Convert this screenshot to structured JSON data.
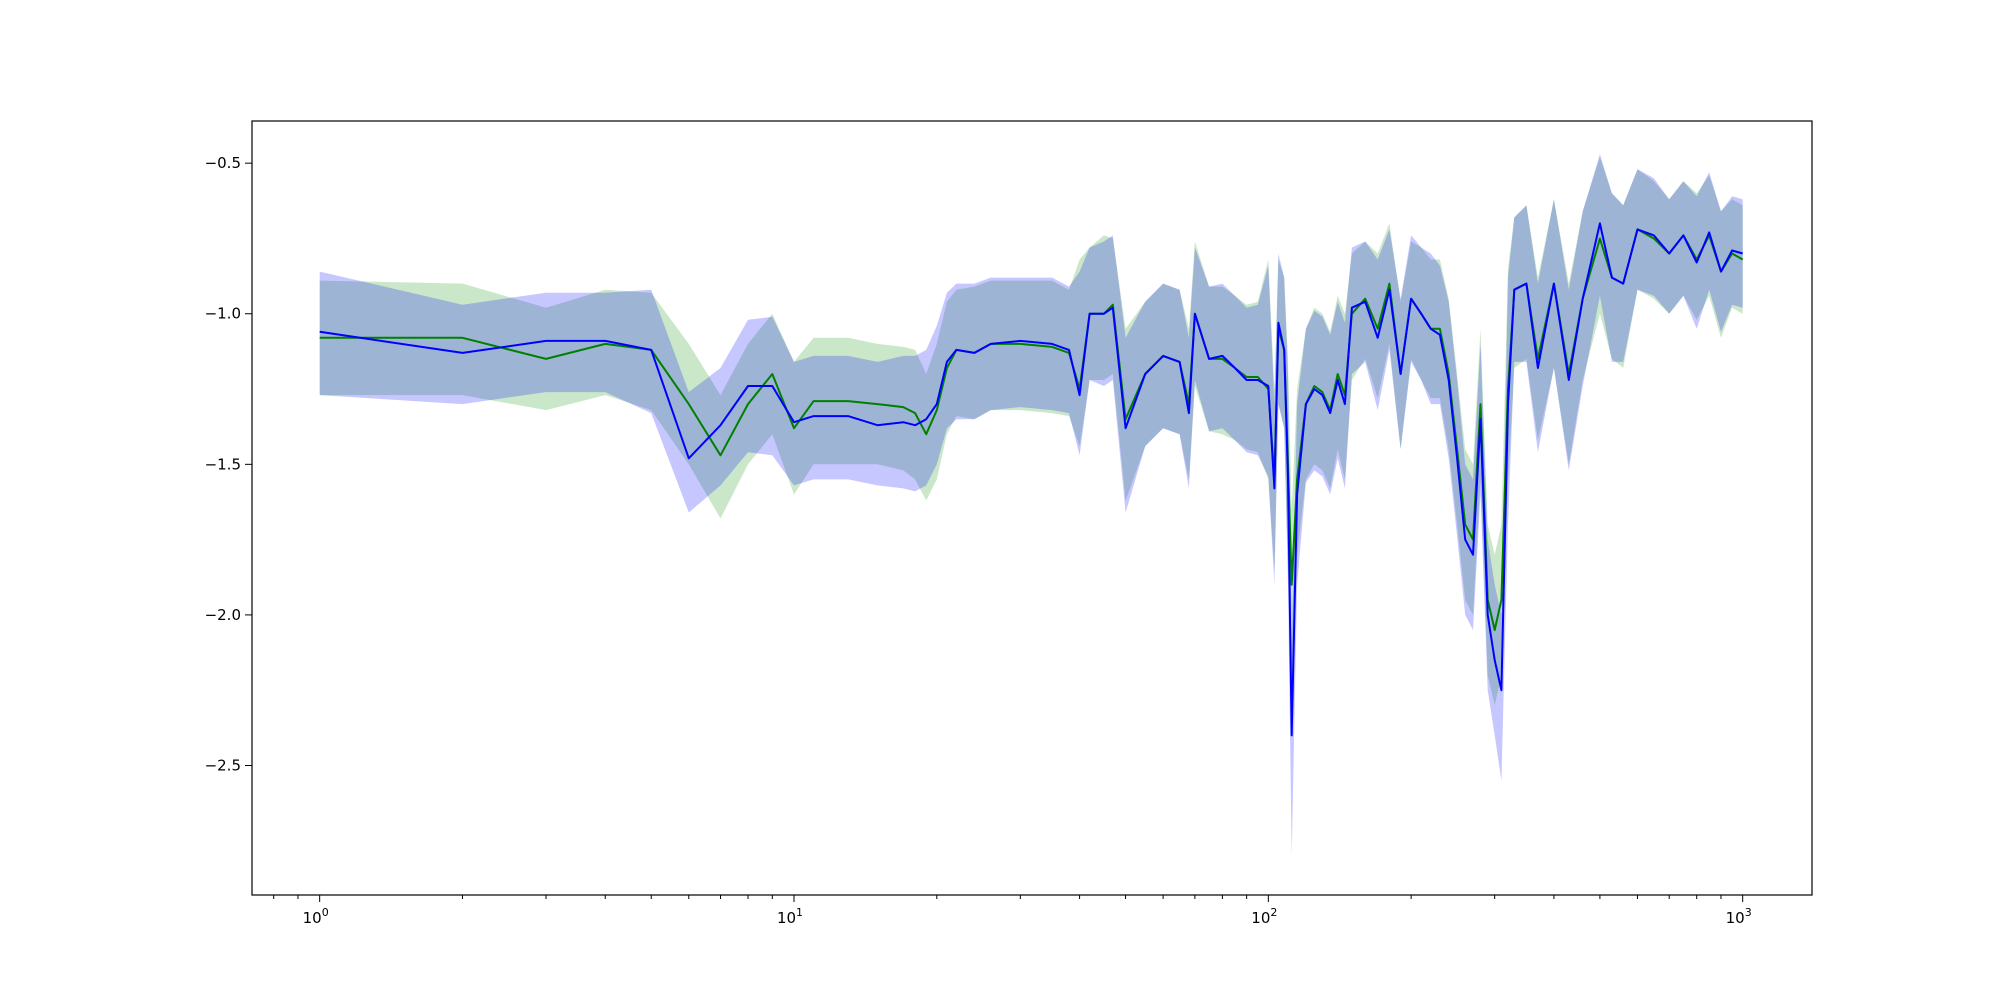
{
  "chart_data": {
    "type": "line",
    "title": "",
    "xlabel": "",
    "ylabel": "",
    "xscale": "log",
    "xlim": [
      0.72,
      1400
    ],
    "ylim": [
      -2.93,
      -0.36
    ],
    "grid": false,
    "legend": "none",
    "x_ticks": [
      {
        "value": 1,
        "base": "10",
        "exp": "0"
      },
      {
        "value": 10,
        "base": "10",
        "exp": "1"
      },
      {
        "value": 100,
        "base": "10",
        "exp": "2"
      },
      {
        "value": 1000,
        "base": "10",
        "exp": "3"
      }
    ],
    "y_ticks": [
      {
        "value": -0.5,
        "label": "−0.5"
      },
      {
        "value": -1.0,
        "label": "−1.0"
      },
      {
        "value": -1.5,
        "label": "−1.5"
      },
      {
        "value": -2.0,
        "label": "−2.0"
      },
      {
        "value": -2.5,
        "label": "−2.5"
      }
    ],
    "series": [
      {
        "color": "#008000",
        "band_color": "#2ca02c",
        "band_opacity": 0.25,
        "x": [
          1,
          2,
          3,
          4,
          5,
          6,
          7,
          8,
          9,
          10,
          11,
          13,
          15,
          17,
          18,
          19,
          20,
          21,
          22,
          24,
          26,
          30,
          35,
          38,
          40,
          42,
          45,
          47,
          50,
          55,
          60,
          65,
          68,
          70,
          75,
          80,
          85,
          90,
          95,
          100,
          103,
          105,
          108,
          110,
          112,
          115,
          120,
          125,
          130,
          135,
          140,
          145,
          150,
          160,
          170,
          180,
          190,
          200,
          210,
          220,
          230,
          240,
          250,
          260,
          270,
          280,
          290,
          300,
          310,
          320,
          330,
          350,
          370,
          400,
          430,
          460,
          500,
          530,
          560,
          600,
          650,
          700,
          750,
          800,
          850,
          900,
          950,
          1000
        ],
        "y": [
          -1.08,
          -1.08,
          -1.15,
          -1.1,
          -1.12,
          -1.3,
          -1.47,
          -1.3,
          -1.2,
          -1.38,
          -1.29,
          -1.29,
          -1.3,
          -1.31,
          -1.33,
          -1.4,
          -1.32,
          -1.18,
          -1.12,
          -1.13,
          -1.1,
          -1.1,
          -1.11,
          -1.13,
          -1.25,
          -1.0,
          -1.0,
          -0.97,
          -1.35,
          -1.2,
          -1.14,
          -1.16,
          -1.3,
          -1.0,
          -1.15,
          -1.15,
          -1.18,
          -1.21,
          -1.21,
          -1.25,
          -1.55,
          -1.05,
          -1.12,
          -1.5,
          -1.9,
          -1.55,
          -1.3,
          -1.24,
          -1.26,
          -1.32,
          -1.2,
          -1.27,
          -1.0,
          -0.95,
          -1.05,
          -0.9,
          -1.2,
          -0.95,
          -1.0,
          -1.05,
          -1.05,
          -1.2,
          -1.45,
          -1.7,
          -1.75,
          -1.3,
          -1.95,
          -2.05,
          -1.95,
          -1.25,
          -0.92,
          -0.9,
          -1.15,
          -0.9,
          -1.2,
          -0.95,
          -0.75,
          -0.88,
          -0.9,
          -0.72,
          -0.75,
          -0.8,
          -0.74,
          -0.82,
          -0.74,
          -0.86,
          -0.8,
          -0.82
        ],
        "upper": [
          -0.89,
          -0.9,
          -0.98,
          -0.92,
          -0.93,
          -1.1,
          -1.27,
          -1.1,
          -1.0,
          -1.16,
          -1.08,
          -1.08,
          -1.1,
          -1.11,
          -1.12,
          -1.2,
          -1.1,
          -0.96,
          -0.92,
          -0.91,
          -0.89,
          -0.89,
          -0.89,
          -0.92,
          -0.82,
          -0.78,
          -0.74,
          -0.75,
          -1.05,
          -0.96,
          -0.9,
          -0.92,
          -1.05,
          -0.76,
          -0.91,
          -0.91,
          -0.94,
          -0.97,
          -0.96,
          -0.82,
          -1.25,
          -0.82,
          -0.88,
          -1.15,
          -1.65,
          -1.25,
          -1.05,
          -0.98,
          -1.0,
          -1.06,
          -0.94,
          -1.0,
          -0.8,
          -0.76,
          -0.8,
          -0.7,
          -0.96,
          -0.76,
          -0.78,
          -0.82,
          -0.82,
          -0.95,
          -1.2,
          -1.45,
          -1.5,
          -1.05,
          -1.7,
          -1.8,
          -1.7,
          -0.85,
          -0.68,
          -0.64,
          -0.88,
          -0.62,
          -0.9,
          -0.66,
          -0.48,
          -0.6,
          -0.64,
          -0.52,
          -0.56,
          -0.62,
          -0.56,
          -0.6,
          -0.54,
          -0.66,
          -0.62,
          -0.64
        ],
        "lower": [
          -1.27,
          -1.27,
          -1.32,
          -1.27,
          -1.32,
          -1.5,
          -1.68,
          -1.5,
          -1.4,
          -1.6,
          -1.5,
          -1.5,
          -1.5,
          -1.52,
          -1.55,
          -1.62,
          -1.55,
          -1.4,
          -1.34,
          -1.35,
          -1.32,
          -1.32,
          -1.33,
          -1.34,
          -1.44,
          -1.22,
          -1.22,
          -1.2,
          -1.62,
          -1.44,
          -1.38,
          -1.4,
          -1.55,
          -1.24,
          -1.39,
          -1.4,
          -1.42,
          -1.45,
          -1.46,
          -1.55,
          -1.85,
          -1.3,
          -1.38,
          -1.85,
          -2.3,
          -1.8,
          -1.55,
          -1.5,
          -1.52,
          -1.58,
          -1.45,
          -1.55,
          -1.22,
          -1.15,
          -1.28,
          -1.1,
          -1.45,
          -1.15,
          -1.22,
          -1.28,
          -1.28,
          -1.45,
          -1.7,
          -1.95,
          -2.0,
          -1.55,
          -2.2,
          -2.3,
          -2.2,
          -1.55,
          -1.18,
          -1.15,
          -1.42,
          -1.18,
          -1.5,
          -1.22,
          -1.0,
          -1.15,
          -1.18,
          -0.92,
          -0.95,
          -1.0,
          -0.94,
          -1.02,
          -0.94,
          -1.08,
          -0.98,
          -1.0
        ]
      },
      {
        "color": "#0000ff",
        "band_color": "#0000ff",
        "band_opacity": 0.22,
        "x": [
          1,
          2,
          3,
          4,
          5,
          6,
          7,
          8,
          9,
          10,
          11,
          13,
          15,
          17,
          18,
          19,
          20,
          21,
          22,
          24,
          26,
          30,
          35,
          38,
          40,
          42,
          45,
          47,
          50,
          55,
          60,
          65,
          68,
          70,
          75,
          80,
          85,
          90,
          95,
          100,
          103,
          105,
          108,
          110,
          112,
          115,
          120,
          125,
          130,
          135,
          140,
          145,
          150,
          160,
          170,
          180,
          190,
          200,
          210,
          220,
          230,
          240,
          250,
          260,
          270,
          280,
          290,
          300,
          310,
          320,
          330,
          350,
          370,
          400,
          430,
          460,
          500,
          530,
          560,
          600,
          650,
          700,
          750,
          800,
          850,
          900,
          950,
          1000
        ],
        "y": [
          -1.06,
          -1.13,
          -1.09,
          -1.09,
          -1.12,
          -1.48,
          -1.37,
          -1.24,
          -1.24,
          -1.36,
          -1.34,
          -1.34,
          -1.37,
          -1.36,
          -1.37,
          -1.35,
          -1.3,
          -1.16,
          -1.12,
          -1.13,
          -1.1,
          -1.09,
          -1.1,
          -1.12,
          -1.27,
          -1.0,
          -1.0,
          -0.98,
          -1.38,
          -1.2,
          -1.14,
          -1.16,
          -1.33,
          -1.0,
          -1.15,
          -1.14,
          -1.18,
          -1.22,
          -1.22,
          -1.24,
          -1.58,
          -1.03,
          -1.12,
          -1.55,
          -2.4,
          -1.6,
          -1.3,
          -1.25,
          -1.27,
          -1.33,
          -1.22,
          -1.3,
          -0.98,
          -0.96,
          -1.08,
          -0.92,
          -1.2,
          -0.95,
          -1.0,
          -1.05,
          -1.07,
          -1.22,
          -1.48,
          -1.75,
          -1.8,
          -1.35,
          -2.0,
          -2.15,
          -2.25,
          -1.3,
          -0.92,
          -0.9,
          -1.18,
          -0.9,
          -1.22,
          -0.95,
          -0.7,
          -0.88,
          -0.9,
          -0.72,
          -0.74,
          -0.8,
          -0.74,
          -0.83,
          -0.73,
          -0.86,
          -0.79,
          -0.8
        ],
        "upper": [
          -0.86,
          -0.97,
          -0.93,
          -0.93,
          -0.92,
          -1.26,
          -1.18,
          -1.02,
          -1.01,
          -1.16,
          -1.14,
          -1.14,
          -1.16,
          -1.14,
          -1.14,
          -1.12,
          -1.04,
          -0.93,
          -0.9,
          -0.9,
          -0.88,
          -0.88,
          -0.88,
          -0.91,
          -0.86,
          -0.78,
          -0.76,
          -0.74,
          -1.08,
          -0.96,
          -0.9,
          -0.92,
          -1.08,
          -0.78,
          -0.91,
          -0.9,
          -0.94,
          -0.98,
          -0.97,
          -0.84,
          -1.3,
          -0.8,
          -0.88,
          -1.2,
          -2.1,
          -1.3,
          -1.05,
          -0.99,
          -1.01,
          -1.07,
          -0.96,
          -1.03,
          -0.78,
          -0.76,
          -0.82,
          -0.72,
          -0.95,
          -0.74,
          -0.78,
          -0.8,
          -0.84,
          -0.96,
          -1.22,
          -1.5,
          -1.55,
          -1.1,
          -1.75,
          -1.9,
          -2.0,
          -0.88,
          -0.68,
          -0.64,
          -0.9,
          -0.62,
          -0.92,
          -0.66,
          -0.47,
          -0.6,
          -0.64,
          -0.52,
          -0.55,
          -0.62,
          -0.56,
          -0.61,
          -0.53,
          -0.66,
          -0.61,
          -0.62
        ],
        "lower": [
          -1.27,
          -1.3,
          -1.26,
          -1.26,
          -1.33,
          -1.66,
          -1.57,
          -1.46,
          -1.47,
          -1.57,
          -1.55,
          -1.55,
          -1.57,
          -1.58,
          -1.59,
          -1.57,
          -1.5,
          -1.38,
          -1.35,
          -1.35,
          -1.32,
          -1.31,
          -1.32,
          -1.33,
          -1.47,
          -1.22,
          -1.24,
          -1.22,
          -1.66,
          -1.44,
          -1.38,
          -1.4,
          -1.58,
          -1.22,
          -1.39,
          -1.38,
          -1.42,
          -1.46,
          -1.47,
          -1.54,
          -1.9,
          -1.3,
          -1.38,
          -1.9,
          -2.8,
          -1.9,
          -1.56,
          -1.52,
          -1.54,
          -1.6,
          -1.48,
          -1.58,
          -1.2,
          -1.16,
          -1.32,
          -1.12,
          -1.45,
          -1.16,
          -1.22,
          -1.3,
          -1.3,
          -1.48,
          -1.74,
          -2.0,
          -2.05,
          -1.6,
          -2.25,
          -2.4,
          -2.55,
          -1.7,
          -1.16,
          -1.16,
          -1.46,
          -1.18,
          -1.52,
          -1.24,
          -0.94,
          -1.16,
          -1.16,
          -0.92,
          -0.94,
          -1.0,
          -0.94,
          -1.05,
          -0.92,
          -1.06,
          -0.97,
          -0.98
        ]
      }
    ]
  }
}
